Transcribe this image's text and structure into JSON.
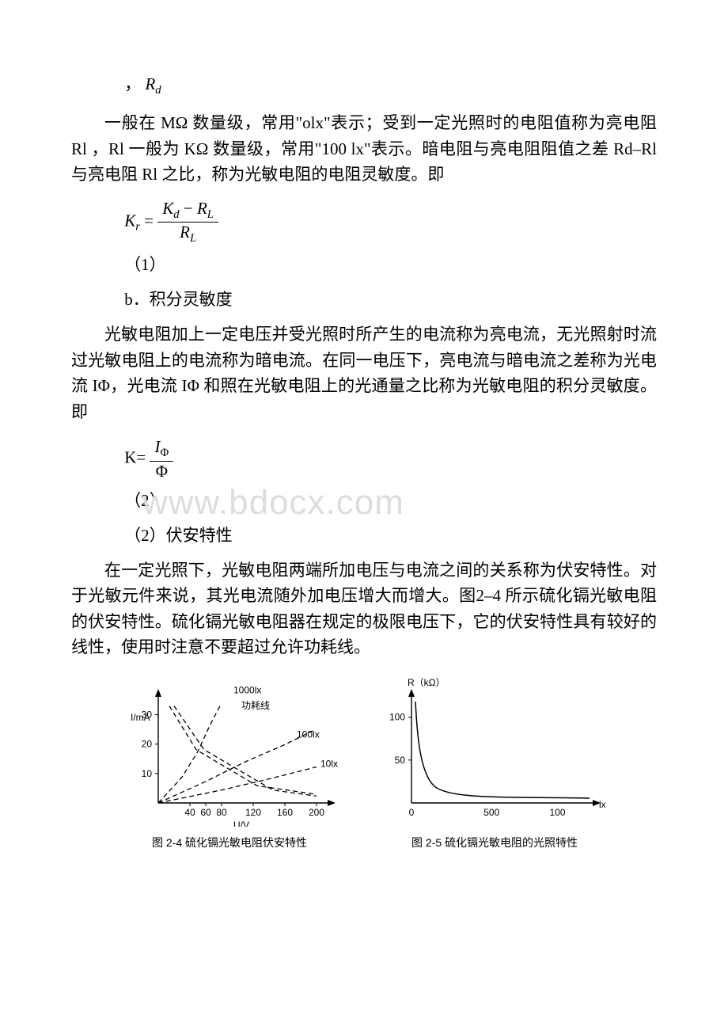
{
  "rd_symbol": {
    "comma": "，",
    "R": "R",
    "sub": "d"
  },
  "para1": "一般在 MΩ 数量级，常用\"olx\"表示；受到一定光照时的电阻值称为亮电阻 Rl ，Rl 一般为 KΩ 数量级，常用\"100 lx\"表示。暗电阻与亮电阻阻值之差 Rd–Rl 与亮电阻 Rl 之比，称为光敏电阻的电阻灵敏度。即",
  "formula1": {
    "lhs": "K",
    "lhs_sub": "r",
    "num_a": "K",
    "num_a_sub": "d",
    "num_minus": "−",
    "num_b": "R",
    "num_b_sub": "L",
    "den": "R",
    "den_sub": "L"
  },
  "eqnum1": "（1）",
  "subhead_b": "b．积分灵敏度",
  "para2": "光敏电阻加上一定电压并受光照时所产生的电流称为亮电流，无光照射时流过光敏电阻上的电流称为暗电流。在同一电压下，亮电流与暗电流之差称为光电流 IΦ，光电流 IΦ 和照在光敏电阻上的光通量之比称为光敏电阻的积分灵敏度。即",
  "formula2": {
    "lhs": "K=",
    "num": "I",
    "num_sub": "Φ",
    "den": "Φ"
  },
  "eqnum2": "（2）",
  "subhead_2": "（2）伏安特性",
  "para3": "在一定光照下，光敏电阻两端所加电压与电流之间的关系称为伏安特性。对于光敏元件来说，其光电流随外加电压增大而增大。图2–4 所示硫化镉光敏电阻的伏安特性。硫化镉光敏电阻器在规定的极限电压下，它的伏安特性具有较好的线性，使用时注意不要超过允许功耗线。",
  "watermark": "www.bdocx.com",
  "fig_left": {
    "caption": "图 2-4 硫化镉光敏电阻伏安特性",
    "y_axis": {
      "label": "I/mA",
      "ticks": [
        10,
        20,
        30
      ]
    },
    "x_axis": {
      "label": "U/V",
      "ticks": [
        40,
        60,
        80,
        120,
        160,
        200
      ]
    },
    "curve_labels": {
      "top": "1000lx",
      "power": "功耗线",
      "mid": "100lx",
      "low": "10lx"
    },
    "curves": {
      "c1000": [
        [
          0,
          0
        ],
        [
          30,
          30
        ],
        [
          50,
          60
        ],
        [
          65,
          90
        ],
        [
          78,
          113
        ]
      ],
      "power1": [
        [
          20,
          113
        ],
        [
          58,
          62
        ],
        [
          145,
          15
        ],
        [
          200,
          8
        ]
      ],
      "power2": [
        [
          14,
          113
        ],
        [
          48,
          62
        ],
        [
          125,
          20
        ],
        [
          200,
          10
        ]
      ],
      "c100": [
        [
          0,
          0
        ],
        [
          60,
          25
        ],
        [
          110,
          48
        ],
        [
          160,
          68
        ],
        [
          195,
          84
        ]
      ],
      "c10": [
        [
          0,
          0
        ],
        [
          80,
          15
        ],
        [
          140,
          28
        ],
        [
          200,
          42
        ]
      ]
    },
    "colors": {
      "axis": "#000000",
      "line": "#000000"
    }
  },
  "fig_right": {
    "caption": "图 2-5 硫化镉光敏电阻的光照特性",
    "y_axis": {
      "label": "R（kΩ）",
      "ticks": [
        50,
        100
      ]
    },
    "x_axis": {
      "label": "lx",
      "ticks": [
        0,
        500,
        100
      ]
    },
    "curve": [
      [
        8,
        10
      ],
      [
        12,
        50
      ],
      [
        20,
        90
      ],
      [
        40,
        115
      ],
      [
        80,
        126
      ],
      [
        140,
        131
      ],
      [
        210,
        134
      ],
      [
        260,
        135
      ]
    ],
    "colors": {
      "axis": "#000000",
      "line": "#000000"
    }
  }
}
